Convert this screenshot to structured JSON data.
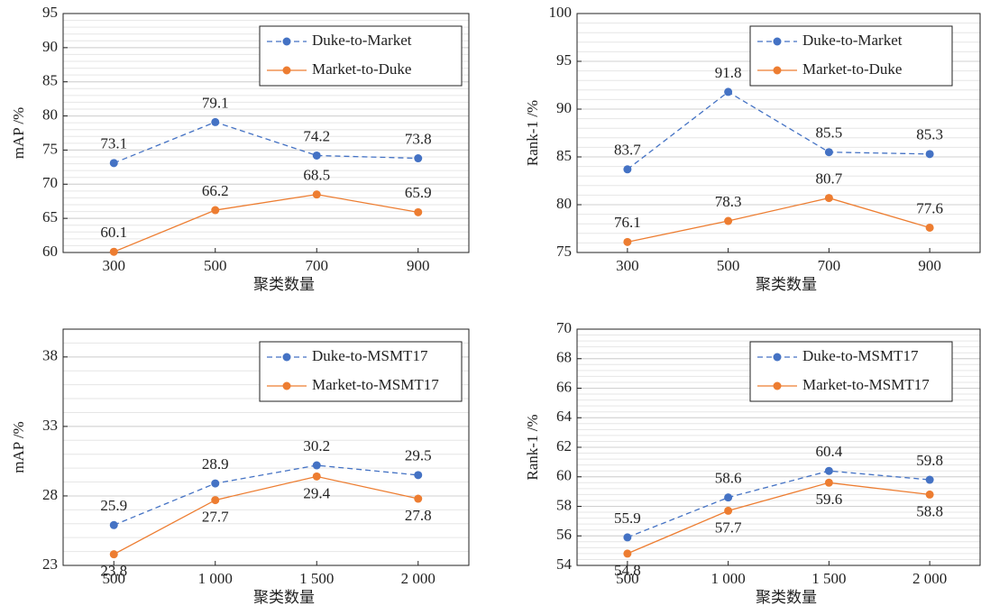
{
  "chart_data": [
    {
      "type": "line",
      "xlabel": "聚类数量",
      "ylabel": "mAP /%",
      "categories": [
        "300",
        "500",
        "700",
        "900"
      ],
      "ylim": [
        60,
        95
      ],
      "yticks": [
        60,
        65,
        70,
        75,
        80,
        85,
        90,
        95
      ],
      "minor_grid": true,
      "legend": "upper-right",
      "series": [
        {
          "name": "Duke-to-Market",
          "color": "#4472c4",
          "dashed": true,
          "label_position": "above",
          "values": [
            73.1,
            79.1,
            74.2,
            73.8
          ]
        },
        {
          "name": "Market-to-Duke",
          "color": "#ed7d31",
          "dashed": false,
          "label_position": "above",
          "values": [
            60.1,
            66.2,
            68.5,
            65.9
          ]
        }
      ]
    },
    {
      "type": "line",
      "xlabel": "聚类数量",
      "ylabel": "Rank-1 /%",
      "categories": [
        "300",
        "500",
        "700",
        "900"
      ],
      "ylim": [
        75,
        100
      ],
      "yticks": [
        75,
        80,
        85,
        90,
        95,
        100
      ],
      "minor_grid": true,
      "legend": "upper-right",
      "series": [
        {
          "name": "Duke-to-Market",
          "color": "#4472c4",
          "dashed": true,
          "label_position": "above",
          "values": [
            83.7,
            91.8,
            85.5,
            85.3
          ]
        },
        {
          "name": "Market-to-Duke",
          "color": "#ed7d31",
          "dashed": false,
          "label_position": "above",
          "values": [
            76.1,
            78.3,
            80.7,
            77.6
          ]
        }
      ]
    },
    {
      "type": "line",
      "xlabel": "聚类数量",
      "ylabel": "mAP /%",
      "categories": [
        "500",
        "1 000",
        "1 500",
        "2 000"
      ],
      "ylim": [
        23,
        40
      ],
      "yticks": [
        23,
        28,
        33,
        38
      ],
      "minor_grid": true,
      "legend": "upper-right",
      "series": [
        {
          "name": "Duke-to-MSMT17",
          "color": "#4472c4",
          "dashed": true,
          "label_position": "above",
          "values": [
            25.9,
            28.9,
            30.2,
            29.5
          ]
        },
        {
          "name": "Market-to-MSMT17",
          "color": "#ed7d31",
          "dashed": false,
          "label_position": "below",
          "values": [
            23.8,
            27.7,
            29.4,
            27.8
          ]
        }
      ]
    },
    {
      "type": "line",
      "xlabel": "聚类数量",
      "ylabel": "Rank-1 /%",
      "categories": [
        "500",
        "1 000",
        "1 500",
        "2 000"
      ],
      "ylim": [
        54,
        70
      ],
      "yticks": [
        54,
        56,
        58,
        60,
        62,
        64,
        66,
        68,
        70
      ],
      "minor_grid": true,
      "legend": "upper-right",
      "series": [
        {
          "name": "Duke-to-MSMT17",
          "color": "#4472c4",
          "dashed": true,
          "label_position": "above",
          "values": [
            55.9,
            58.6,
            60.4,
            59.8
          ]
        },
        {
          "name": "Market-to-MSMT17",
          "color": "#ed7d31",
          "dashed": false,
          "label_position": "below",
          "values": [
            54.8,
            57.7,
            59.6,
            58.8
          ]
        }
      ]
    }
  ]
}
